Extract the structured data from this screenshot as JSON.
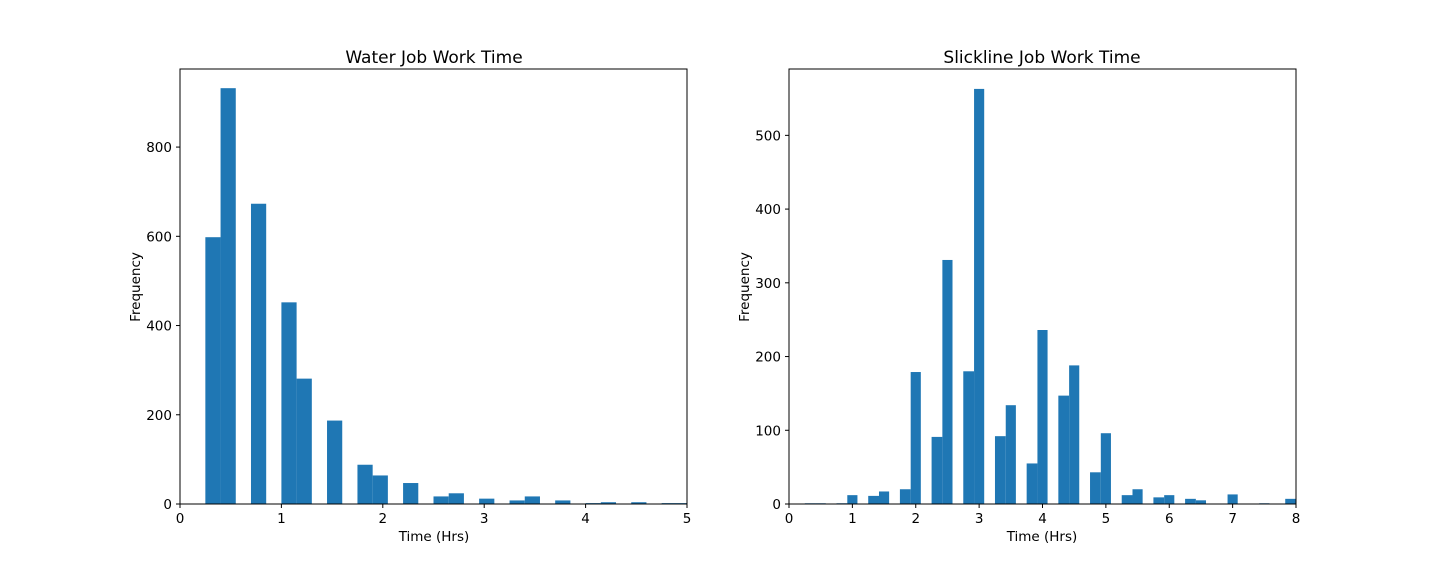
{
  "chart_data": [
    {
      "type": "bar",
      "title": "Water Job Work Time",
      "xlabel": "Time (Hrs)",
      "ylabel": "Frequency",
      "xlim": [
        0,
        5
      ],
      "ylim": [
        0,
        975
      ],
      "xticks": [
        0,
        1,
        2,
        3,
        4,
        5
      ],
      "yticks": [
        0,
        200,
        400,
        600,
        800
      ],
      "grid": false,
      "color": "#1f77b4",
      "bins": [
        {
          "x0": 0.25,
          "x1": 0.4,
          "value": 598
        },
        {
          "x0": 0.4,
          "x1": 0.55,
          "value": 932
        },
        {
          "x0": 0.7,
          "x1": 0.85,
          "value": 673
        },
        {
          "x0": 1.0,
          "x1": 1.15,
          "value": 452
        },
        {
          "x0": 1.15,
          "x1": 1.3,
          "value": 281
        },
        {
          "x0": 1.45,
          "x1": 1.6,
          "value": 187
        },
        {
          "x0": 1.75,
          "x1": 1.9,
          "value": 88
        },
        {
          "x0": 1.9,
          "x1": 2.05,
          "value": 64
        },
        {
          "x0": 2.2,
          "x1": 2.35,
          "value": 47
        },
        {
          "x0": 2.5,
          "x1": 2.65,
          "value": 17
        },
        {
          "x0": 2.65,
          "x1": 2.8,
          "value": 24
        },
        {
          "x0": 2.95,
          "x1": 3.1,
          "value": 12
        },
        {
          "x0": 3.25,
          "x1": 3.4,
          "value": 8
        },
        {
          "x0": 3.4,
          "x1": 3.55,
          "value": 17
        },
        {
          "x0": 3.7,
          "x1": 3.85,
          "value": 8
        },
        {
          "x0": 4.0,
          "x1": 4.15,
          "value": 2
        },
        {
          "x0": 4.15,
          "x1": 4.3,
          "value": 4
        },
        {
          "x0": 4.45,
          "x1": 4.6,
          "value": 4
        },
        {
          "x0": 4.75,
          "x1": 5.0,
          "value": 2
        }
      ]
    },
    {
      "type": "bar",
      "title": "Slickline Job Work Time",
      "xlabel": "Time (Hrs)",
      "ylabel": "Frequency",
      "xlim": [
        0,
        8
      ],
      "ylim": [
        0,
        590
      ],
      "xticks": [
        0,
        1,
        2,
        3,
        4,
        5,
        6,
        7,
        8
      ],
      "yticks": [
        0,
        100,
        200,
        300,
        400,
        500
      ],
      "grid": false,
      "color": "#1f77b4",
      "bins": [
        {
          "x0": 0.25,
          "x1": 0.42,
          "value": 1
        },
        {
          "x0": 0.42,
          "x1": 0.58,
          "value": 1
        },
        {
          "x0": 0.75,
          "x1": 0.92,
          "value": 1
        },
        {
          "x0": 0.92,
          "x1": 1.08,
          "value": 12
        },
        {
          "x0": 1.25,
          "x1": 1.42,
          "value": 11
        },
        {
          "x0": 1.42,
          "x1": 1.58,
          "value": 17
        },
        {
          "x0": 1.75,
          "x1": 1.92,
          "value": 20
        },
        {
          "x0": 1.92,
          "x1": 2.08,
          "value": 179
        },
        {
          "x0": 2.25,
          "x1": 2.42,
          "value": 91
        },
        {
          "x0": 2.42,
          "x1": 2.58,
          "value": 331
        },
        {
          "x0": 2.75,
          "x1": 2.92,
          "value": 180
        },
        {
          "x0": 2.92,
          "x1": 3.08,
          "value": 563
        },
        {
          "x0": 3.25,
          "x1": 3.42,
          "value": 92
        },
        {
          "x0": 3.42,
          "x1": 3.58,
          "value": 134
        },
        {
          "x0": 3.75,
          "x1": 3.92,
          "value": 55
        },
        {
          "x0": 3.92,
          "x1": 4.08,
          "value": 236
        },
        {
          "x0": 4.25,
          "x1": 4.42,
          "value": 147
        },
        {
          "x0": 4.42,
          "x1": 4.58,
          "value": 188
        },
        {
          "x0": 4.75,
          "x1": 4.92,
          "value": 43
        },
        {
          "x0": 4.92,
          "x1": 5.08,
          "value": 96
        },
        {
          "x0": 5.25,
          "x1": 5.42,
          "value": 12
        },
        {
          "x0": 5.42,
          "x1": 5.58,
          "value": 20
        },
        {
          "x0": 5.75,
          "x1": 5.92,
          "value": 9
        },
        {
          "x0": 5.92,
          "x1": 6.08,
          "value": 12
        },
        {
          "x0": 6.25,
          "x1": 6.42,
          "value": 7
        },
        {
          "x0": 6.42,
          "x1": 6.58,
          "value": 5
        },
        {
          "x0": 6.92,
          "x1": 7.08,
          "value": 13
        },
        {
          "x0": 7.42,
          "x1": 7.58,
          "value": 1
        },
        {
          "x0": 7.83,
          "x1": 8.0,
          "value": 7
        }
      ]
    }
  ]
}
